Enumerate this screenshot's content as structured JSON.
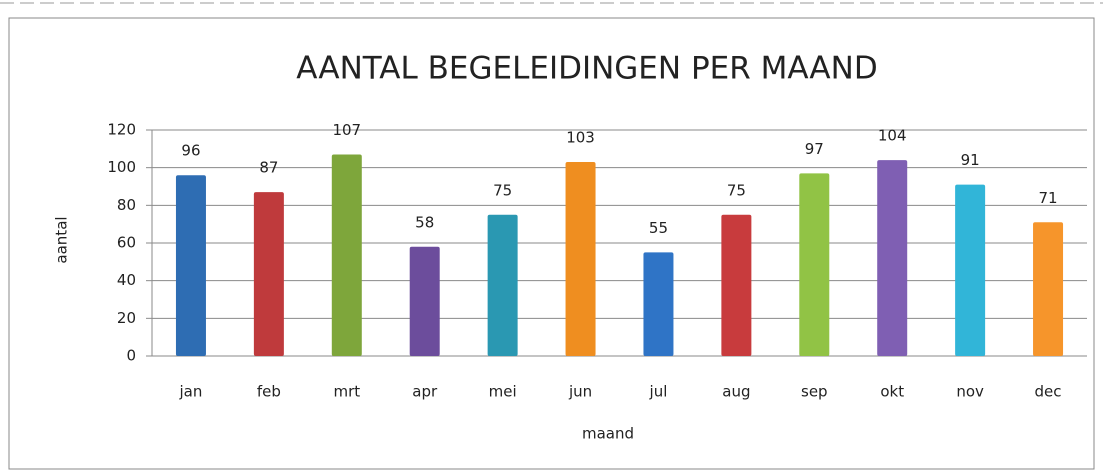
{
  "chart_data": {
    "type": "bar",
    "title": "AANTAL BEGELEIDINGEN PER MAAND",
    "x_label": "maand",
    "y_label": "aantal",
    "categories": [
      "jan",
      "feb",
      "mrt",
      "apr",
      "mei",
      "jun",
      "jul",
      "aug",
      "sep",
      "okt",
      "nov",
      "dec"
    ],
    "values": [
      96,
      87,
      107,
      58,
      75,
      103,
      55,
      75,
      97,
      104,
      91,
      71
    ],
    "colors": [
      "#2e6db3",
      "#bf3a3c",
      "#7ea63b",
      "#6c4d9c",
      "#2a98b2",
      "#ef8e20",
      "#2f74c6",
      "#c83b3d",
      "#91c345",
      "#7f5fb3",
      "#31b5d8",
      "#f6952b"
    ],
    "ylim": [
      0,
      120
    ],
    "yticks": [
      0,
      20,
      40,
      60,
      80,
      100,
      120
    ],
    "grid": true
  }
}
